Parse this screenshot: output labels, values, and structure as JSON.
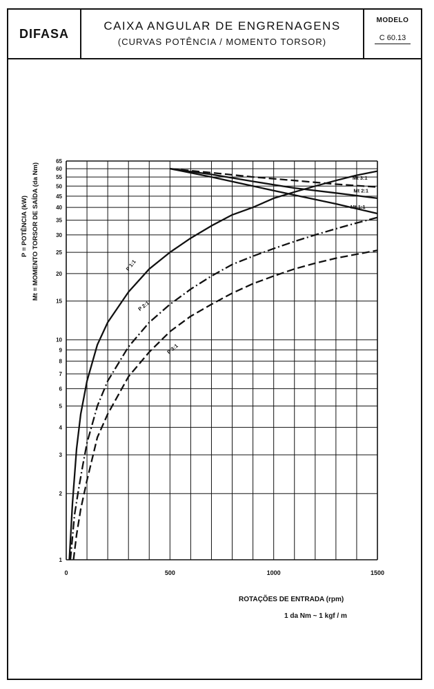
{
  "header": {
    "brand": "DIFASA",
    "title": "CAIXA ANGULAR DE ENGRENAGENS",
    "subtitle": "(CURVAS POTÊNCIA / MOMENTO TORSOR)",
    "model_label": "MODELO",
    "model_value": "C 60.13"
  },
  "footer": {
    "xlabel": "ROTAÇÕES DE ENTRADA (rpm)",
    "note": "1 da Nm ~ 1 kgf / m"
  },
  "chart_data": {
    "type": "line",
    "title": "CAIXA ANGULAR DE ENGRENAGENS",
    "xlabel": "ROTAÇÕES DE ENTRADA (rpm)",
    "ylabel": "P = POTÊNCIA (kW)  Mt = MOMENTO TORSOR DE SAÍDA (da Nm)",
    "y_scale": "log",
    "xlim": [
      0,
      1500
    ],
    "ylim": [
      1,
      65
    ],
    "grid": true,
    "x_ticks": [
      0,
      500,
      1000,
      1500
    ],
    "y_ticks": [
      1,
      2,
      3,
      4,
      5,
      6,
      7,
      8,
      9,
      10,
      15,
      20,
      25,
      30,
      35,
      40,
      45,
      50,
      55,
      60,
      65
    ],
    "series": [
      {
        "name": "P 1:1",
        "style": "solid",
        "x": [
          15,
          30,
          50,
          70,
          100,
          150,
          200,
          300,
          400,
          500,
          600,
          700,
          800,
          900,
          1000,
          1100,
          1200,
          1300,
          1400,
          1500
        ],
        "y": [
          1,
          1.8,
          3.2,
          4.6,
          6.5,
          9.5,
          12,
          16.5,
          21,
          25,
          29,
          33,
          37,
          40,
          44,
          47,
          50,
          53,
          56,
          58.5
        ]
      },
      {
        "name": "P 2:1",
        "style": "dash-dot",
        "x": [
          20,
          40,
          60,
          80,
          100,
          150,
          200,
          300,
          400,
          500,
          600,
          700,
          800,
          900,
          1000,
          1100,
          1200,
          1300,
          1400,
          1500
        ],
        "y": [
          1,
          1.6,
          2.1,
          2.7,
          3.4,
          5,
          6.5,
          9.3,
          12,
          14.5,
          17,
          19.5,
          22,
          24,
          26,
          28,
          30,
          32,
          34,
          36
        ]
      },
      {
        "name": "P 3:1",
        "style": "dashed",
        "x": [
          35,
          50,
          70,
          100,
          150,
          200,
          300,
          400,
          500,
          600,
          700,
          800,
          900,
          1000,
          1100,
          1200,
          1300,
          1400,
          1500
        ],
        "y": [
          1,
          1.3,
          1.7,
          2.3,
          3.6,
          4.6,
          6.8,
          8.8,
          10.9,
          12.8,
          14.5,
          16.3,
          18,
          19.5,
          21,
          22.3,
          23.5,
          24.5,
          25.5
        ]
      },
      {
        "name": "Mt 1:1",
        "style": "solid",
        "x": [
          500,
          700,
          900,
          1100,
          1300,
          1500
        ],
        "y": [
          60,
          55,
          50,
          45.5,
          41.5,
          37.5
        ]
      },
      {
        "name": "Mt 2:1",
        "style": "solid",
        "x": [
          500,
          700,
          900,
          1100,
          1300,
          1500
        ],
        "y": [
          60,
          56.5,
          52.5,
          49,
          46.5,
          44
        ]
      },
      {
        "name": "Mt 3:1",
        "style": "dashed",
        "x": [
          500,
          700,
          900,
          1100,
          1300,
          1500
        ],
        "y": [
          60,
          57.5,
          55,
          53,
          51,
          49.5
        ]
      }
    ]
  },
  "axis_labels": {
    "ylabel_p": "P = POTÊNCIA (kW)",
    "ylabel_mt": "Mt = MOMENTO TORSOR DE SAÍDA (da Nm)"
  }
}
